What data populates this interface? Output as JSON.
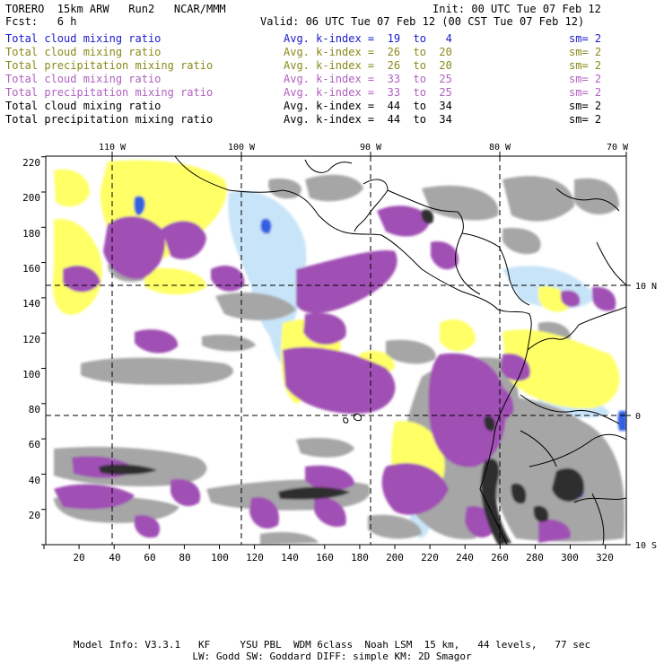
{
  "header": {
    "model": "TORERO  15km ARW   Run2   NCAR/MMM",
    "init": "Init: 00 UTC Tue 07 Feb 12",
    "fcst": "Fcst:   6 h",
    "valid": "Valid: 06 UTC Tue 07 Feb 12 (00 CST Tue 07 Feb 12)"
  },
  "legend": [
    {
      "name": "Total cloud mixing ratio",
      "index": "Avg. k-index =  19  to   4",
      "sm": "sm= 2",
      "color": "#1a1acc"
    },
    {
      "name": "Total cloud mixing ratio",
      "index": "Avg. k-index =  26  to  20",
      "sm": "sm= 2",
      "color": "#8a8a1a"
    },
    {
      "name": "Total precipitation mixing ratio",
      "index": "Avg. k-index =  26  to  20",
      "sm": "sm= 2",
      "color": "#8a8a1a"
    },
    {
      "name": "Total cloud mixing ratio",
      "index": "Avg. k-index =  33  to  25",
      "sm": "sm= 2",
      "color": "#b060c0"
    },
    {
      "name": "Total precipitation mixing ratio",
      "index": "Avg. k-index =  33  to  25",
      "sm": "sm= 2",
      "color": "#b060c0"
    },
    {
      "name": "Total cloud mixing ratio",
      "index": "Avg. k-index =  44  to  34",
      "sm": "sm= 2",
      "color": "#000000"
    },
    {
      "name": "Total precipitation mixing ratio",
      "index": "Avg. k-index =  44  to  34",
      "sm": "sm= 2",
      "color": "#000000"
    }
  ],
  "map": {
    "lon_labels": [
      "110 W",
      "100 W",
      "90 W",
      "80 W",
      "70 W"
    ],
    "lat_labels": [
      "10 N",
      "0",
      "10 S"
    ],
    "y_ticks": [
      "220",
      "200",
      "180",
      "160",
      "140",
      "120",
      "100",
      "80",
      "60",
      "40",
      "20"
    ],
    "x_ticks": [
      "20",
      "40",
      "60",
      "80",
      "100",
      "120",
      "140",
      "160",
      "180",
      "200",
      "220",
      "240",
      "260",
      "280",
      "300",
      "320"
    ],
    "colors": {
      "yellow": "#ffff66",
      "purple": "#a050b4",
      "gray": "#a0a0a0",
      "lightblue": "#c8e4f8",
      "blue": "#3060e0",
      "dark": "#303030"
    }
  },
  "footer": {
    "line1": "Model Info: V3.3.1   KF     YSU PBL  WDM 6class  Noah LSM  15 km,   44 levels,   77 sec",
    "line2": "LW: Godd SW: Goddard DIFF: simple KM: 2D Smagor"
  }
}
